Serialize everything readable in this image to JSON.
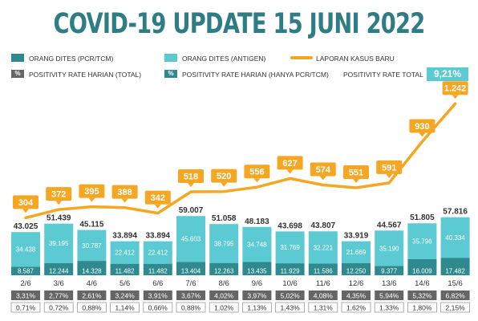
{
  "title": "COVID-19 UPDATE 15 JUNI 2022",
  "legend": {
    "pcr": "ORANG DITES (PCR/TCM)",
    "antigen": "ORANG DITES (ANTIGEN)",
    "cases": "LAPORAN KASUS BARU",
    "pos_total": "POSITIVITY RATE HARIAN (TOTAL)",
    "pos_pcr": "POSITIVITY RATE HARIAN (HANYA PCR/TCM)",
    "pct_symbol": "%",
    "total_label": "POSITIVITY RATE TOTAL",
    "total_value": "9,21%"
  },
  "colors": {
    "title": "#2e7d84",
    "pcr": "#2e8a8f",
    "antigen": "#5ccad3",
    "cases": "#f5a623",
    "rate_total": "#666666",
    "rate_pcr": "#2e8a8f"
  },
  "chart_data": {
    "type": "bar",
    "categories": [
      "2/6",
      "3/6",
      "4/6",
      "5/6",
      "6/6",
      "7/6",
      "8/6",
      "9/6",
      "10/6",
      "11/6",
      "12/6",
      "13/6",
      "14/6",
      "15/6"
    ],
    "series": [
      {
        "name": "ORANG DITES (PCR/TCM)",
        "values": [
          8587,
          12244,
          14328,
          11482,
          11482,
          13404,
          12263,
          13435,
          11929,
          11586,
          12250,
          9377,
          16009,
          17482
        ],
        "labels": [
          "8.587",
          "12.244",
          "14.328",
          "11.482",
          "11.482",
          "13.404",
          "12.263",
          "13.435",
          "11.929",
          "11.586",
          "12.250",
          "9.377",
          "16.009",
          "17.482"
        ]
      },
      {
        "name": "ORANG DITES (ANTIGEN)",
        "values": [
          34438,
          39195,
          30787,
          22412,
          22412,
          45603,
          38795,
          34748,
          31769,
          32221,
          21669,
          35190,
          35796,
          40334
        ],
        "labels": [
          "34.438",
          "39.195",
          "30.787",
          "22.412",
          "22.412",
          "45.603",
          "38.795",
          "34.748",
          "31.769",
          "32.221",
          "21.669",
          "35.190",
          "35.796",
          "40.334"
        ]
      },
      {
        "name": "LAPORAN KASUS BARU",
        "values": [
          304,
          372,
          395,
          388,
          342,
          518,
          520,
          556,
          627,
          574,
          551,
          591,
          930,
          1242
        ],
        "labels": [
          "304",
          "372",
          "395",
          "388",
          "342",
          "518",
          "520",
          "556",
          "627",
          "574",
          "551",
          "591",
          "930",
          "1.242"
        ]
      }
    ],
    "totals": [
      "43.025",
      "51.439",
      "45.115",
      "33.894",
      "33.894",
      "59.007",
      "51.058",
      "48.183",
      "43.698",
      "43.807",
      "33.919",
      "44.567",
      "51.805",
      "57.816"
    ],
    "total_values": [
      43025,
      51439,
      45115,
      33894,
      33894,
      59007,
      51058,
      48183,
      43698,
      43807,
      33919,
      44567,
      51805,
      57816
    ],
    "positivity_total": [
      "3,31%",
      "2,77%",
      "2,61%",
      "3,24%",
      "3,91%",
      "3,67%",
      "4,02%",
      "3,97%",
      "5,02%",
      "4,08%",
      "4,35%",
      "5,94%",
      "5,32%",
      "6,82%"
    ],
    "positivity_pcr": [
      "0,71%",
      "0,72%",
      "0,88%",
      "1,14%",
      "0,66%",
      "0,88%",
      "1,02%",
      "1,13%",
      "1,43%",
      "1,31%",
      "1,62%",
      "1,33%",
      "1,80%",
      "2,15%"
    ]
  }
}
